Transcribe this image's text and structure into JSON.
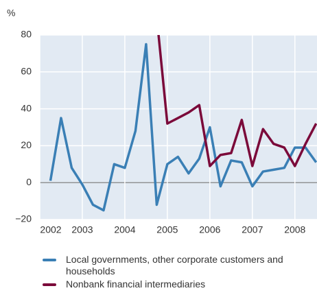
{
  "chart_data": {
    "type": "line",
    "y_label": "%",
    "x": [
      2002.25,
      2002.5,
      2002.75,
      2003,
      2003.25,
      2003.5,
      2003.75,
      2004,
      2004.25,
      2004.5,
      2004.75,
      2005,
      2005.25,
      2005.5,
      2005.75,
      2006,
      2006.25,
      2006.5,
      2006.75,
      2007,
      2007.25,
      2007.5,
      2007.75,
      2008,
      2008.25,
      2008.5
    ],
    "series": [
      {
        "name": "Local governments, other corporate customers and households",
        "color": "#3a7fb5",
        "values": [
          1,
          35,
          8,
          -1,
          -12,
          -15,
          10,
          8,
          28,
          75,
          -12,
          10,
          14,
          5,
          13,
          30,
          -2,
          12,
          11,
          -2,
          6,
          7,
          8,
          19,
          19,
          11
        ]
      },
      {
        "name": "Nonbank financial intermediaries",
        "color": "#7b0a3a",
        "values": [
          null,
          null,
          null,
          null,
          null,
          null,
          null,
          null,
          null,
          null,
          90,
          32,
          35,
          38,
          42,
          9,
          15,
          16,
          34,
          9,
          29,
          21,
          19,
          9,
          21,
          32
        ]
      }
    ],
    "xlim": [
      2002,
      2008.52
    ],
    "xticks": [
      2002,
      2003,
      2004,
      2005,
      2006,
      2007,
      2008
    ],
    "ylim": [
      -20,
      80
    ],
    "yticks": [
      {
        "value": -20,
        "label": "−20"
      },
      0,
      20,
      40,
      60,
      80
    ],
    "grid": true
  }
}
